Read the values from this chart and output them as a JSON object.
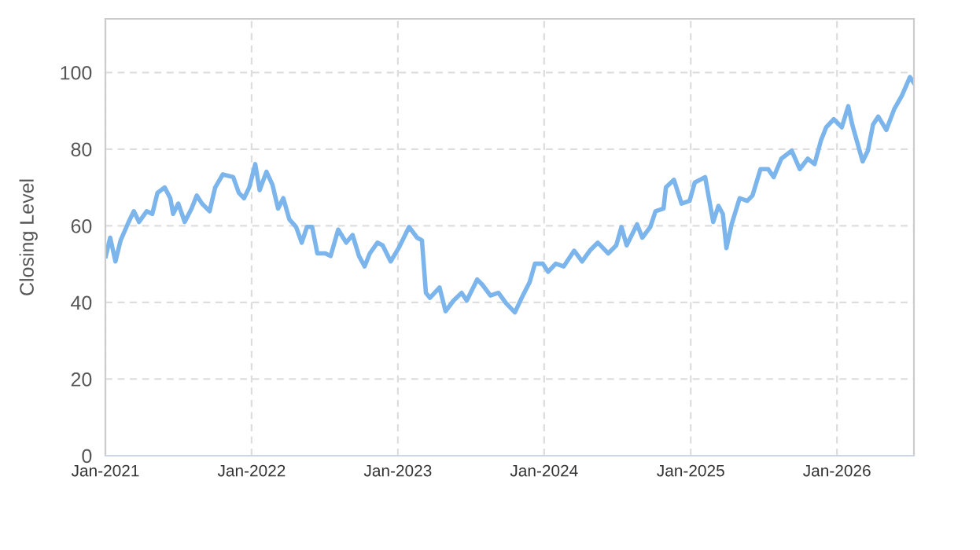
{
  "chart_data": {
    "type": "line",
    "ylabel": "Closing Level",
    "x": [
      "2021-01-02",
      "2021-01-13",
      "2021-01-26",
      "2021-02-08",
      "2021-02-28",
      "2021-03-13",
      "2021-03-26",
      "2021-04-14",
      "2021-04-28",
      "2021-05-11",
      "2021-05-29",
      "2021-06-12",
      "2021-06-19",
      "2021-07-02",
      "2021-07-18",
      "2021-08-04",
      "2021-08-17",
      "2021-08-30",
      "2021-09-18",
      "2021-10-02",
      "2021-10-21",
      "2021-11-16",
      "2021-11-30",
      "2021-12-13",
      "2021-12-26",
      "2022-01-10",
      "2022-01-21",
      "2022-02-07",
      "2022-02-22",
      "2022-03-08",
      "2022-03-21",
      "2022-04-05",
      "2022-04-22",
      "2022-05-06",
      "2022-05-19",
      "2022-06-01",
      "2022-06-14",
      "2022-07-04",
      "2022-07-17",
      "2022-08-05",
      "2022-08-25",
      "2022-09-10",
      "2022-09-26",
      "2022-10-10",
      "2022-10-23",
      "2022-11-11",
      "2022-11-24",
      "2022-12-14",
      "2023-01-03",
      "2023-01-29",
      "2023-02-18",
      "2023-03-02",
      "2023-03-12",
      "2023-03-22",
      "2023-04-15",
      "2023-04-30",
      "2023-05-20",
      "2023-06-09",
      "2023-06-22",
      "2023-07-18",
      "2023-07-31",
      "2023-08-20",
      "2023-09-09",
      "2023-09-28",
      "2023-10-20",
      "2023-11-06",
      "2023-11-26",
      "2023-12-09",
      "2023-12-29",
      "2024-01-11",
      "2024-01-30",
      "2024-02-19",
      "2024-03-16",
      "2024-04-05",
      "2024-04-24",
      "2024-05-14",
      "2024-06-09",
      "2024-06-29",
      "2024-07-12",
      "2024-07-25",
      "2024-08-20",
      "2024-09-02",
      "2024-09-22",
      "2024-10-05",
      "2024-10-25",
      "2024-10-31",
      "2024-11-20",
      "2024-12-09",
      "2024-12-29",
      "2025-01-11",
      "2025-02-06",
      "2025-02-26",
      "2025-03-11",
      "2025-03-22",
      "2025-03-31",
      "2025-04-13",
      "2025-05-03",
      "2025-05-22",
      "2025-06-04",
      "2025-06-24",
      "2025-07-13",
      "2025-07-27",
      "2025-08-15",
      "2025-09-10",
      "2025-09-30",
      "2025-10-20",
      "2025-11-06",
      "2025-11-22",
      "2025-12-05",
      "2025-12-24",
      "2026-01-13",
      "2026-01-29",
      "2026-02-08",
      "2026-02-21",
      "2026-03-06",
      "2026-03-19",
      "2026-04-01",
      "2026-04-14",
      "2026-05-04",
      "2026-05-24",
      "2026-06-12",
      "2026-07-02",
      "2026-07-11"
    ],
    "series": [
      {
        "color": "#7cb5ec",
        "values": [
          52.1,
          56.9,
          50.7,
          56.2,
          61.0,
          63.8,
          61.0,
          63.8,
          63.1,
          68.6,
          70.0,
          67.2,
          63.1,
          65.8,
          61.0,
          64.5,
          67.9,
          65.8,
          63.8,
          70.0,
          73.4,
          72.7,
          68.6,
          67.2,
          70.0,
          76.1,
          69.3,
          74.1,
          70.7,
          64.5,
          67.2,
          61.7,
          59.7,
          55.6,
          59.7,
          59.7,
          52.8,
          52.8,
          52.1,
          59.0,
          55.6,
          57.6,
          52.1,
          49.4,
          52.8,
          55.6,
          54.9,
          50.7,
          54.2,
          59.7,
          56.9,
          56.2,
          42.5,
          41.2,
          43.9,
          37.7,
          40.5,
          42.5,
          40.5,
          46.0,
          44.6,
          41.8,
          42.5,
          39.8,
          37.4,
          41.2,
          45.3,
          50.1,
          50.1,
          48.0,
          50.1,
          49.4,
          53.5,
          50.7,
          53.5,
          55.6,
          52.8,
          54.9,
          59.7,
          54.9,
          60.4,
          56.9,
          59.7,
          63.8,
          64.5,
          70.0,
          72.0,
          65.8,
          66.5,
          71.3,
          72.7,
          61.0,
          65.2,
          63.1,
          54.2,
          60.4,
          67.2,
          66.5,
          67.9,
          74.8,
          74.8,
          72.7,
          77.5,
          79.6,
          74.8,
          77.5,
          76.1,
          82.3,
          85.7,
          87.8,
          85.7,
          91.2,
          86.4,
          81.6,
          76.8,
          79.6,
          86.4,
          88.5,
          85.0,
          90.5,
          94.0,
          98.8,
          97.4
        ]
      }
    ],
    "xlim": [
      "2021-01-01",
      "2026-07-12"
    ],
    "xticks": [
      {
        "value": "2021-01-01",
        "label": "Jan-2021"
      },
      {
        "value": "2022-01-01",
        "label": "Jan-2022"
      },
      {
        "value": "2023-01-01",
        "label": "Jan-2023"
      },
      {
        "value": "2024-01-01",
        "label": "Jan-2024"
      },
      {
        "value": "2025-01-01",
        "label": "Jan-2025"
      },
      {
        "value": "2026-01-01",
        "label": "Jan-2026"
      }
    ],
    "ylim": [
      0,
      114
    ],
    "yticks": [
      0,
      20,
      40,
      60,
      80,
      100
    ],
    "grid": true,
    "line_style": "solid",
    "marker": "none",
    "legend": false
  }
}
